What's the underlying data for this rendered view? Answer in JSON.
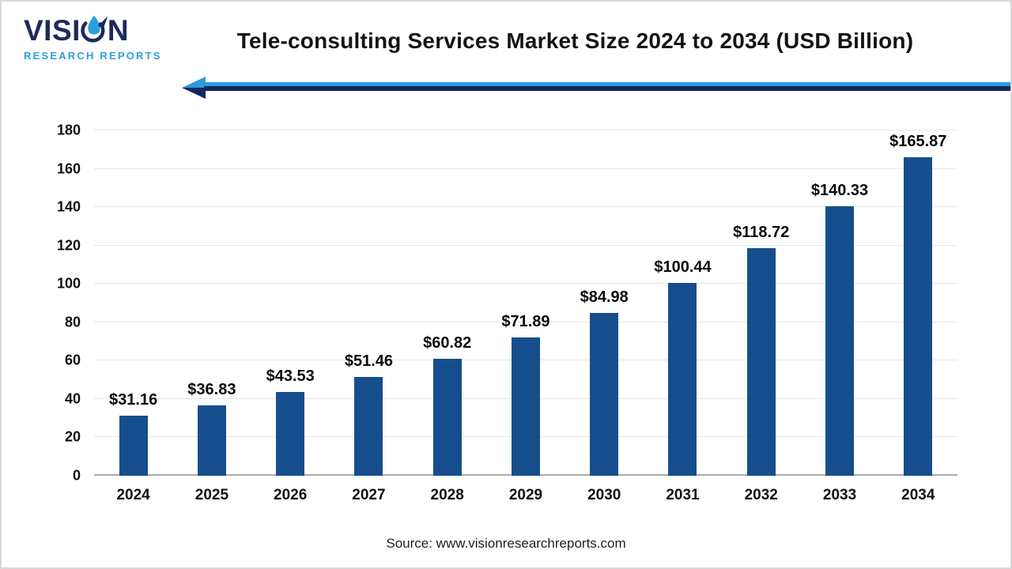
{
  "page": {
    "title": "Tele-consulting Services Market Size 2024 to 2034 (USD Billion)",
    "source": "Source: www.visionresearchreports.com"
  },
  "logo": {
    "word_start": "VISI",
    "word_end": "N",
    "subtitle": "RESEARCH REPORTS"
  },
  "colors": {
    "bar": "#164e8d",
    "navy": "#1b2a5e",
    "light_blue": "#2e9ee0",
    "arrow_light": "#2d9bdc",
    "arrow_dark": "#14265c",
    "gridline": "#e7e7e7",
    "axis_line": "#acacac"
  },
  "chart_data": {
    "type": "bar",
    "title": "Tele-consulting Services Market Size 2024 to 2034 (USD Billion)",
    "categories": [
      "2024",
      "2025",
      "2026",
      "2027",
      "2028",
      "2029",
      "2030",
      "2031",
      "2032",
      "2033",
      "2034"
    ],
    "values": [
      31.16,
      36.83,
      43.53,
      51.46,
      60.82,
      71.89,
      84.98,
      100.44,
      118.72,
      140.33,
      165.87
    ],
    "labels": [
      "$31.16",
      "$36.83",
      "$43.53",
      "$51.46",
      "$60.82",
      "$71.89",
      "$84.98",
      "$100.44",
      "$118.72",
      "$140.33",
      "$165.87"
    ],
    "xlabel": "",
    "ylabel": "",
    "ylim": [
      0,
      180
    ],
    "yticks": [
      0,
      20,
      40,
      60,
      80,
      100,
      120,
      140,
      160,
      180
    ],
    "grid": "horizontal",
    "legend": "none",
    "bar_color": "#164e8d"
  }
}
